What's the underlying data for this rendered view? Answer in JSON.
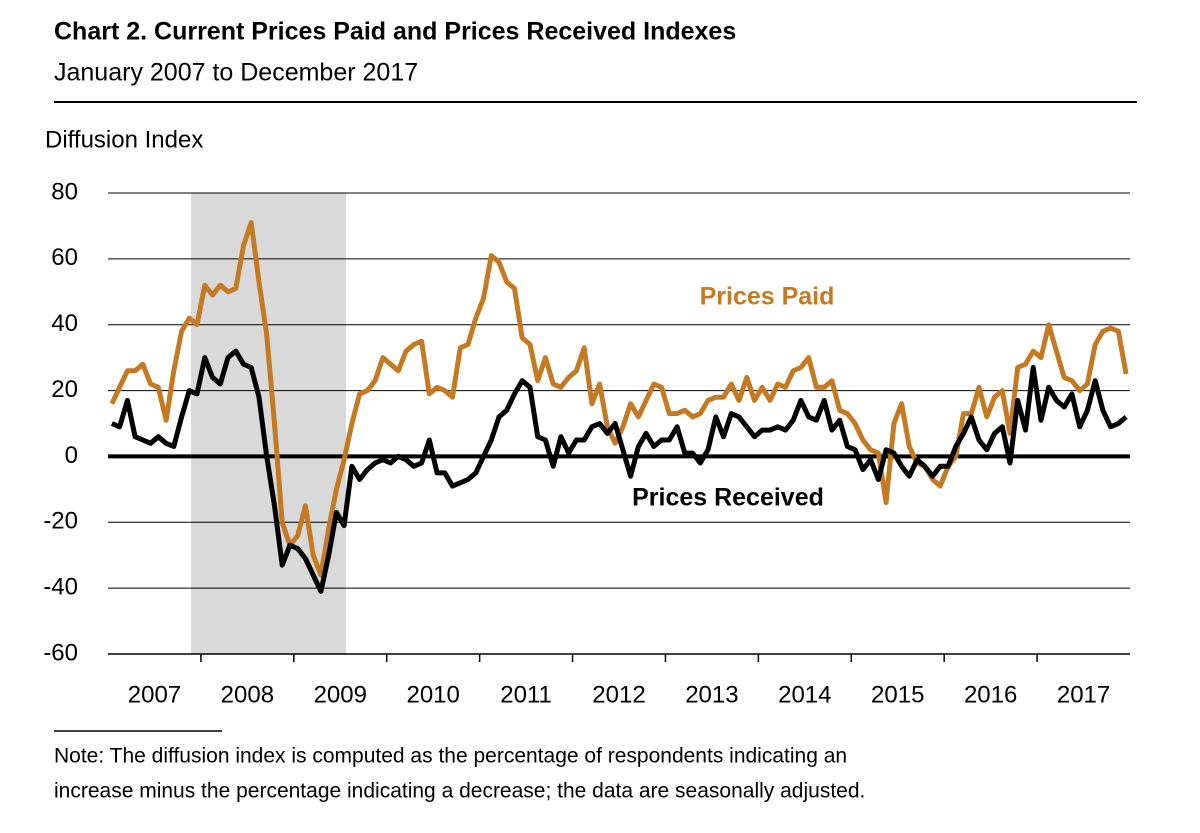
{
  "chart_data": {
    "type": "line",
    "title": "Chart 2. Current Prices Paid and Prices Received Indexes",
    "subtitle": "January 2007 to December 2017",
    "y_label": "Diffusion Index",
    "note": [
      "Note: The diffusion index is computed as the percentage of respondents indicating an",
      "increase minus the percentage indicating a decrease; the data are seasonally adjusted."
    ],
    "categories": [
      null,
      null,
      null,
      null,
      null,
      "2007",
      null,
      null,
      null,
      null,
      null,
      null,
      null,
      null,
      null,
      null,
      null,
      "2008",
      null,
      null,
      null,
      null,
      null,
      null,
      null,
      null,
      null,
      null,
      null,
      "2009",
      null,
      null,
      null,
      null,
      null,
      null,
      null,
      null,
      null,
      null,
      null,
      "2010",
      null,
      null,
      null,
      null,
      null,
      null,
      null,
      null,
      null,
      null,
      null,
      "2011",
      null,
      null,
      null,
      null,
      null,
      null,
      null,
      null,
      null,
      null,
      null,
      "2012",
      null,
      null,
      null,
      null,
      null,
      null,
      null,
      null,
      null,
      null,
      null,
      "2013",
      null,
      null,
      null,
      null,
      null,
      null,
      null,
      null,
      null,
      null,
      null,
      "2014",
      null,
      null,
      null,
      null,
      null,
      null,
      null,
      null,
      null,
      null,
      null,
      "2015",
      null,
      null,
      null,
      null,
      null,
      null,
      null,
      null,
      null,
      null,
      null,
      "2016",
      null,
      null,
      null,
      null,
      null,
      null,
      null,
      null,
      null,
      null,
      null,
      "2017",
      null,
      null,
      null,
      null,
      null,
      null
    ],
    "series": [
      {
        "name": "Prices Paid",
        "color": "#c47a22",
        "values": [
          16,
          21,
          26,
          26,
          28,
          22,
          21,
          11,
          26,
          38,
          42,
          40,
          52,
          49,
          52,
          50,
          51,
          64,
          71,
          53,
          37,
          10,
          -20,
          -27,
          -24,
          -15,
          -30,
          -36,
          -22,
          -10,
          -1,
          10,
          19,
          20,
          23,
          30,
          28,
          26,
          32,
          34,
          35,
          19,
          21,
          20,
          18,
          33,
          34,
          42,
          48,
          61,
          59,
          53,
          51,
          36,
          34,
          23,
          30,
          22,
          21,
          24,
          26,
          33,
          16,
          22,
          9,
          4,
          9,
          16,
          12,
          17,
          22,
          21,
          13,
          13,
          14,
          12,
          13,
          17,
          18,
          18,
          22,
          17,
          24,
          17,
          21,
          17,
          22,
          21,
          26,
          27,
          30,
          21,
          21,
          23,
          14,
          13,
          10,
          5,
          2,
          1,
          -14,
          10,
          16,
          3,
          -2,
          -3,
          -7,
          -9,
          -3,
          0,
          13,
          13,
          21,
          12,
          18,
          20,
          7,
          27,
          28,
          32,
          30,
          40,
          32,
          24,
          23,
          20,
          22,
          34,
          38,
          39,
          38,
          25
        ]
      },
      {
        "name": "Prices Received",
        "color": "#000000",
        "values": [
          10,
          9,
          17,
          6,
          5,
          4,
          6,
          4,
          3,
          12,
          20,
          19,
          30,
          24,
          22,
          30,
          32,
          28,
          27,
          18,
          0,
          -15,
          -33,
          -27,
          -28,
          -31,
          -36,
          -41,
          -30,
          -17,
          -21,
          -3,
          -7,
          -4,
          -2,
          -1,
          -2,
          0,
          -1,
          -3,
          -2,
          5,
          -5,
          -5,
          -9,
          -8,
          -7,
          -5,
          0,
          5,
          12,
          14,
          19,
          23,
          21,
          6,
          5,
          -3,
          6,
          1,
          5,
          5,
          9,
          10,
          7,
          10,
          2,
          -6,
          3,
          7,
          3,
          5,
          5,
          9,
          1,
          1,
          -2,
          2,
          12,
          6,
          13,
          12,
          9,
          6,
          8,
          8,
          9,
          8,
          11,
          17,
          12,
          11,
          17,
          8,
          11,
          3,
          2,
          -4,
          -1,
          -7,
          2,
          1,
          -3,
          -6,
          -1,
          -3,
          -6,
          -3,
          -3,
          3,
          7,
          12,
          5,
          2,
          7,
          9,
          -2,
          17,
          8,
          27,
          11,
          21,
          17,
          15,
          19,
          9,
          14,
          23,
          14,
          9,
          10,
          12
        ]
      }
    ],
    "ylim": [
      -60,
      80
    ],
    "yticks": [
      -60,
      -40,
      -20,
      0,
      20,
      40,
      60,
      80
    ],
    "grid": true
  }
}
